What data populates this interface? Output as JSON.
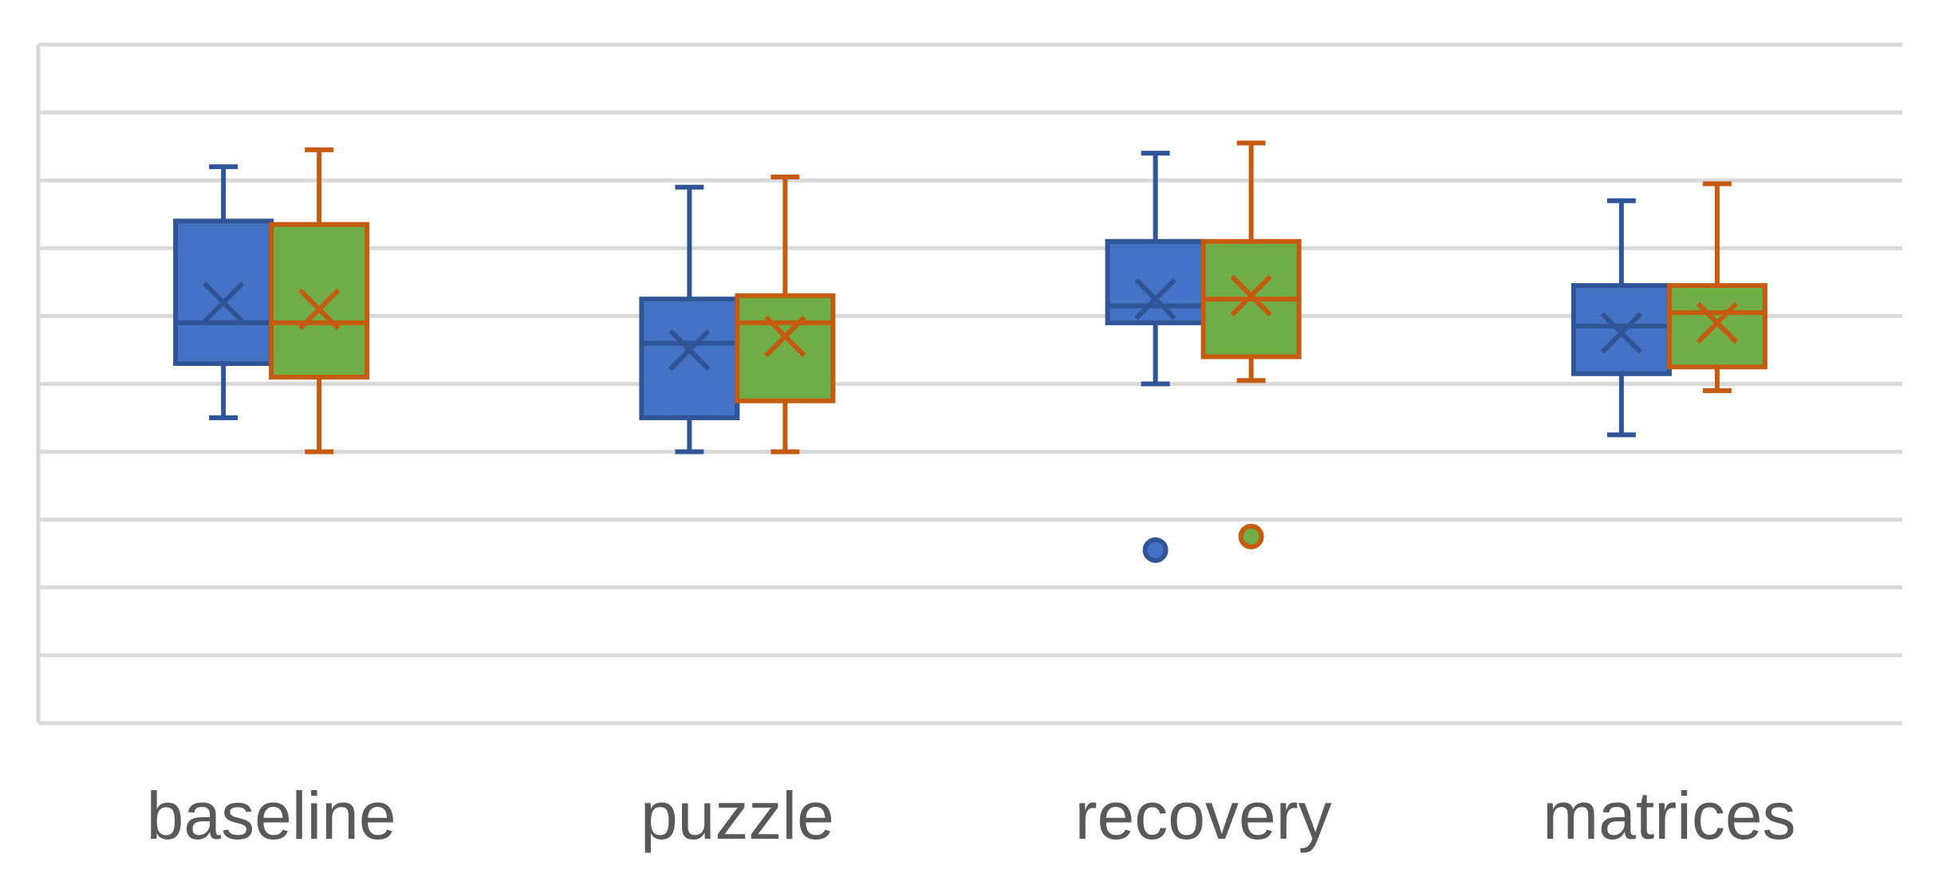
{
  "chart_data": {
    "type": "box",
    "title": "",
    "xlabel": "",
    "ylabel": "",
    "ylim": [
      0,
      10
    ],
    "grid": true,
    "legend": "none",
    "categories": [
      "baseline",
      "puzzle",
      "recovery",
      "matrices"
    ],
    "series": [
      {
        "color": "#4472C4",
        "stroke": "#2F5597",
        "boxes": [
          {
            "category": "baseline",
            "min": 4.5,
            "q1": 5.3,
            "median": 5.9,
            "q3": 7.4,
            "max": 8.2,
            "mean": 6.2,
            "outliers": []
          },
          {
            "category": "puzzle",
            "min": 4.0,
            "q1": 4.5,
            "median": 5.6,
            "q3": 6.25,
            "max": 7.9,
            "mean": 5.5,
            "outliers": []
          },
          {
            "category": "recovery",
            "min": 5.0,
            "q1": 5.9,
            "median": 6.15,
            "q3": 7.1,
            "max": 8.4,
            "mean": 6.25,
            "outliers": [
              2.55
            ]
          },
          {
            "category": "matrices",
            "min": 4.25,
            "q1": 5.15,
            "median": 5.85,
            "q3": 6.45,
            "max": 7.7,
            "mean": 5.75,
            "outliers": []
          }
        ]
      },
      {
        "color": "#70AD47",
        "stroke": "#C55A11",
        "boxes": [
          {
            "category": "baseline",
            "min": 4.0,
            "q1": 5.1,
            "median": 5.9,
            "q3": 7.35,
            "max": 8.45,
            "mean": 6.1,
            "outliers": []
          },
          {
            "category": "puzzle",
            "min": 4.0,
            "q1": 4.75,
            "median": 5.9,
            "q3": 6.3,
            "max": 8.05,
            "mean": 5.7,
            "outliers": []
          },
          {
            "category": "recovery",
            "min": 5.05,
            "q1": 5.4,
            "median": 6.25,
            "q3": 7.1,
            "max": 8.55,
            "mean": 6.3,
            "outliers": [
              2.75
            ]
          },
          {
            "category": "matrices",
            "min": 4.9,
            "q1": 5.25,
            "median": 6.05,
            "q3": 6.45,
            "max": 7.95,
            "mean": 5.9,
            "outliers": []
          }
        ]
      }
    ]
  }
}
